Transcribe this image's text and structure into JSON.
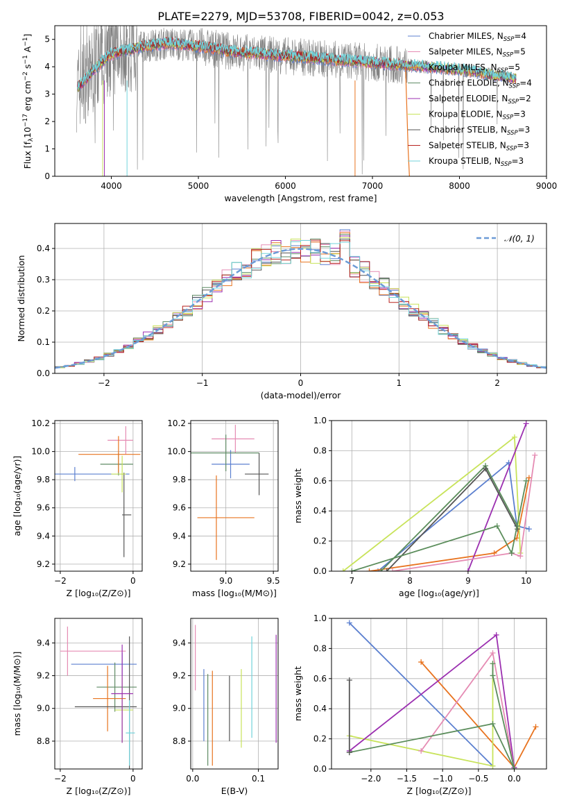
{
  "title": "PLATE=2279, MJD=53708, FIBERID=0042, z=0.053",
  "series_colors": [
    "#5b7fcf",
    "#e58bb3",
    "#6c9bd6",
    "#5e8a64",
    "#9b2fb0",
    "#c8e060",
    "#555555",
    "#b8221f",
    "#7fd8e0"
  ],
  "extra_colors": {
    "orange": "#e8731f",
    "gray": "#808080",
    "teal": "#72d3db",
    "yellowgreen": "#c8e35a",
    "green": "#5b8d5b"
  },
  "chart_data": [
    {
      "type": "line",
      "title": "PLATE=2279, MJD=53708, FIBERID=0042, z=0.053",
      "xlabel": "wavelength [Angstrom, rest frame]",
      "ylabel": "Flux [fλ10⁻¹⁷ erg cm⁻² s⁻¹ A⁻¹]",
      "ylabel_parts": {
        "a": "Flux [f",
        "b": "λ",
        "c": "10",
        "d": "−17",
        "e": " erg cm",
        "f": "−2",
        "g": " s",
        "h": "−1",
        "i": " A",
        "j": "−1",
        "k": "]"
      },
      "xlim": [
        3350,
        9000
      ],
      "ylim": [
        0,
        5.5
      ],
      "xticks": [
        4000,
        5000,
        6000,
        7000,
        8000,
        9000
      ],
      "yticks": [
        0,
        1,
        2,
        3,
        4,
        5
      ],
      "legend_placement": "upper-right",
      "legend": [
        {
          "label": "Chabrier MILES, N",
          "sub": "SSP",
          "tail": "=4"
        },
        {
          "label": "Salpeter MILES, N",
          "sub": "SSP",
          "tail": "=5"
        },
        {
          "label": "Kroupa MILES, N",
          "sub": "SSP",
          "tail": "=5"
        },
        {
          "label": "Chabrier ELODIE, N",
          "sub": "SSP",
          "tail": "=4"
        },
        {
          "label": "Salpeter ELODIE, N",
          "sub": "SSP",
          "tail": "=2"
        },
        {
          "label": "Kroupa ELODIE, N",
          "sub": "SSP",
          "tail": "=3"
        },
        {
          "label": "Chabrier STELIB, N",
          "sub": "SSP",
          "tail": "=3"
        },
        {
          "label": "Salpeter STELIB, N",
          "sub": "SSP",
          "tail": "=3"
        },
        {
          "label": "Kroupa STELIB, N",
          "sub": "SSP",
          "tail": "=3"
        }
      ],
      "continuum": {
        "x": [
          3600,
          3700,
          3800,
          3900,
          4000,
          4100,
          4200,
          4300,
          4400,
          4500,
          4600,
          4700,
          4800,
          4900,
          5000,
          5200,
          5400,
          5600,
          5800,
          6000,
          6200,
          6400,
          6600,
          6800,
          7000,
          7200,
          7400,
          7600,
          7800,
          8000,
          8200,
          8400,
          8600
        ],
        "y": [
          3.2,
          3.5,
          3.9,
          4.2,
          4.45,
          4.55,
          4.6,
          4.7,
          4.75,
          4.8,
          4.85,
          4.85,
          4.82,
          4.78,
          4.75,
          4.65,
          4.55,
          4.5,
          4.45,
          4.4,
          4.35,
          4.3,
          4.25,
          4.2,
          4.15,
          4.1,
          4.05,
          4.0,
          3.95,
          3.9,
          3.8,
          3.7,
          3.6
        ]
      },
      "model_endpoints": {
        "salpeter_stelib": [
          3610,
          7400
        ],
        "kroupa_miles": [
          3600,
          8650
        ],
        "kroupa_elodie": [
          3610,
          6800
        ]
      }
    },
    {
      "type": "line",
      "subtype": "step-histogram",
      "xlabel": "(data-model)/error",
      "ylabel": "Normed distribution",
      "xlim": [
        -2.5,
        2.5
      ],
      "ylim": [
        0,
        0.48
      ],
      "xticks": [
        -2,
        -1,
        0,
        1,
        2
      ],
      "yticks": [
        0.0,
        0.1,
        0.2,
        0.3,
        0.4
      ],
      "legend_placement": "upper-right",
      "legend": [
        {
          "label": "𝒩(0, 1)"
        }
      ],
      "gaussian": {
        "mu": 0,
        "sigma": 1
      },
      "bin_edges_count": 50,
      "histogram_peak": 0.46
    },
    {
      "type": "scatter",
      "subtype": "errorbar",
      "xlabel": "Z [log₁₀(Z/Z⊙)]",
      "ylabel": "age  [log₁₀(age/yr)]",
      "xlim": [
        -2.15,
        0.25
      ],
      "ylim": [
        9.15,
        10.22
      ],
      "xticks": [
        -2,
        0
      ],
      "yticks": [
        9.2,
        9.4,
        9.6,
        9.8,
        10.0,
        10.2
      ],
      "points": [
        {
          "x": -0.2,
          "y": 10.08,
          "xerr": [
            0.5,
            0.2
          ],
          "yerr": 0.1
        },
        {
          "x": -1.6,
          "y": 9.84,
          "xerr": [
            0.6,
            1.5
          ],
          "yerr": 0.05
        },
        {
          "x": -0.4,
          "y": 9.91,
          "xerr": [
            0.5,
            0.4
          ],
          "yerr": 0.08
        },
        {
          "x": -0.4,
          "y": 9.98,
          "xerr": [
            1.1,
            0.6
          ],
          "yerr": 0.13
        },
        {
          "x": -0.25,
          "y": 9.55,
          "xerr": [
            0.05,
            0.2
          ],
          "yerr": 0.3
        },
        {
          "x": -0.3,
          "y": 9.84,
          "xerr": [
            0.3,
            0.1
          ],
          "yerr": 0.13
        }
      ]
    },
    {
      "type": "scatter",
      "subtype": "errorbar",
      "xlabel": "mass [log₁₀(M/M⊙)]",
      "ylabel": "",
      "xlim": [
        8.63,
        9.55
      ],
      "ylim": [
        9.15,
        10.22
      ],
      "xticks": [
        9.0,
        9.5
      ],
      "yticks": [
        9.2,
        9.4,
        9.6,
        9.8,
        10.0,
        10.2
      ],
      "points": [
        {
          "x": 9.1,
          "y": 10.09,
          "xerr": [
            0.25,
            0.2
          ],
          "yerr": 0.1
        },
        {
          "x": 9.05,
          "y": 9.91,
          "xerr": [
            0.2,
            0.2
          ],
          "yerr": 0.1
        },
        {
          "x": 9.0,
          "y": 9.99,
          "xerr": [
            0.4,
            0.35
          ],
          "yerr": 0.13
        },
        {
          "x": 8.9,
          "y": 9.53,
          "xerr": [
            0.2,
            0.4
          ],
          "yerr": 0.3
        },
        {
          "x": 9.35,
          "y": 9.84,
          "xerr": [
            0.15,
            0.1
          ],
          "yerr": 0.15
        }
      ]
    },
    {
      "type": "line",
      "xlabel": "age  [log₁₀(age/yr)]",
      "ylabel": "mass weight",
      "xlim": [
        6.65,
        10.35
      ],
      "ylim": [
        0,
        1.0
      ],
      "xticks": [
        7,
        8,
        9,
        10
      ],
      "yticks": [
        0.0,
        0.2,
        0.4,
        0.6,
        0.8,
        1.0
      ],
      "series": [
        {
          "x": [
            7.45,
            9.7,
            9.84,
            10.05
          ],
          "y": [
            0.0,
            0.72,
            0.3,
            0.28
          ]
        },
        {
          "x": [
            7.3,
            9.45,
            9.84,
            10.05
          ],
          "y": [
            0.0,
            0.12,
            0.22,
            0.62
          ]
        },
        {
          "x": [
            6.85,
            9.8,
            9.9
          ],
          "y": [
            0.0,
            0.89,
            0.12
          ]
        },
        {
          "x": [
            9.0,
            10.0
          ],
          "y": [
            0.0,
            0.98
          ]
        },
        {
          "x": [
            7.7,
            9.75,
            9.9,
            10.15
          ],
          "y": [
            0.0,
            0.12,
            0.1,
            0.77
          ]
        },
        {
          "x": [
            7.5,
            9.3,
            9.85
          ],
          "y": [
            0.0,
            0.7,
            0.3
          ]
        },
        {
          "x": [
            7.6,
            9.3,
            9.85
          ],
          "y": [
            0.0,
            0.68,
            0.28
          ]
        },
        {
          "x": [
            7.0,
            9.5,
            9.75,
            10.0
          ],
          "y": [
            0.0,
            0.3,
            0.12,
            0.6
          ]
        }
      ]
    },
    {
      "type": "scatter",
      "subtype": "errorbar",
      "xlabel": "Z [log₁₀(Z/Z⊙)]",
      "ylabel": "mass [log₁₀(M/M⊙)]",
      "xlim": [
        -2.15,
        0.25
      ],
      "ylim": [
        8.63,
        9.55
      ],
      "xticks": [
        -2,
        0
      ],
      "yticks": [
        8.8,
        9.0,
        9.2,
        9.4
      ],
      "points": [
        {
          "x": -1.8,
          "y": 9.35,
          "xerr": [
            0.2,
            1.6
          ],
          "yerr": 0.15
        },
        {
          "x": -0.3,
          "y": 9.27,
          "xerr": [
            1.4,
            0.4
          ],
          "yerr": 0.07
        },
        {
          "x": -0.5,
          "y": 9.13,
          "xerr": [
            0.5,
            0.6
          ],
          "yerr": 0.15
        },
        {
          "x": -0.7,
          "y": 9.06,
          "xerr": [
            0.4,
            0.5
          ],
          "yerr": 0.2
        },
        {
          "x": -0.1,
          "y": 9.01,
          "xerr": [
            1.5,
            0.2
          ],
          "yerr": 0.43
        },
        {
          "x": -0.3,
          "y": 8.99,
          "xerr": [
            0.2,
            0.3
          ],
          "yerr": 0.2
        },
        {
          "x": -0.1,
          "y": 8.85,
          "xerr": [
            0.1,
            0.15
          ],
          "yerr": 0.2
        },
        {
          "x": -0.3,
          "y": 9.09,
          "xerr": [
            0.3,
            0.3
          ],
          "yerr": 0.3
        }
      ]
    },
    {
      "type": "scatter",
      "subtype": "errorbar",
      "xlabel": "E(B-V)",
      "ylabel": "",
      "xlim": [
        -0.003,
        0.13
      ],
      "ylim": [
        8.63,
        9.55
      ],
      "xticks": [
        0.0,
        0.1
      ],
      "yticks": [
        8.8,
        9.0,
        9.2,
        9.4
      ],
      "points": [
        {
          "x": 0.004,
          "y": 9.31,
          "yerr": 0.2
        },
        {
          "x": 0.017,
          "y": 9.02,
          "yerr": 0.22
        },
        {
          "x": 0.023,
          "y": 8.93,
          "yerr": 0.28
        },
        {
          "x": 0.03,
          "y": 8.94,
          "yerr": 0.29
        },
        {
          "x": 0.056,
          "y": 9.0,
          "yerr": 0.2
        },
        {
          "x": 0.074,
          "y": 9.0,
          "yerr": 0.24
        },
        {
          "x": 0.09,
          "y": 9.13,
          "yerr": 0.31
        },
        {
          "x": 0.127,
          "y": 9.12,
          "yerr": 0.33
        }
      ]
    },
    {
      "type": "line",
      "xlabel": "Z [log₁₀(Z/Z⊙)]",
      "ylabel": "mass weight",
      "xlim": [
        -2.55,
        0.45
      ],
      "ylim": [
        0,
        1.0
      ],
      "xticks": [
        -2.0,
        -1.5,
        -1.0,
        -0.5,
        0.0
      ],
      "yticks": [
        0.0,
        0.2,
        0.4,
        0.6,
        0.8,
        1.0
      ],
      "series": [
        {
          "x": [
            -2.3,
            -0.3
          ],
          "y": [
            0.97,
            0.02
          ]
        },
        {
          "x": [
            -1.3,
            0.0,
            0.3
          ],
          "y": [
            0.71,
            0.01,
            0.28
          ]
        },
        {
          "x": [
            -2.3,
            -0.3,
            -0.3
          ],
          "y": [
            0.22,
            0.02,
            0.7
          ]
        },
        {
          "x": [
            -2.3,
            -0.25,
            0.0
          ],
          "y": [
            0.12,
            0.89,
            0.01
          ]
        },
        {
          "x": [
            -1.3,
            -0.3,
            0.0
          ],
          "y": [
            0.12,
            0.77,
            0.0
          ]
        },
        {
          "x": [
            -2.3,
            -0.3,
            0.0
          ],
          "y": [
            0.11,
            0.3,
            0.0
          ]
        },
        {
          "x": [
            -2.3,
            -2.3
          ],
          "y": [
            0.11,
            0.59
          ]
        },
        {
          "x": [
            -0.3,
            -0.3,
            0.0
          ],
          "y": [
            0.7,
            0.62,
            0.0
          ]
        }
      ]
    }
  ]
}
